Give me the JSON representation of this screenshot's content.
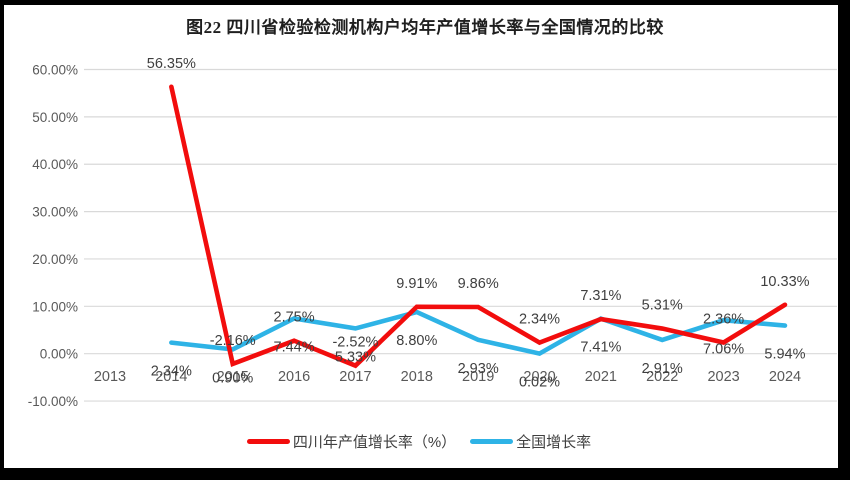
{
  "title": "图22  四川省检验检测机构户均年产值增长率与全国情况的比较",
  "legend": {
    "items": [
      {
        "label": "四川年产值增长率（%）",
        "color": "#f20d0d"
      },
      {
        "label": "全国增长率",
        "color": "#2eb3e6"
      }
    ]
  },
  "chart_data": {
    "type": "line",
    "title": "图22  四川省检验检测机构户均年产值增长率与全国情况的比较",
    "categories": [
      "2013",
      "2014",
      "2015",
      "2016",
      "2017",
      "2018",
      "2019",
      "2020",
      "2021",
      "2022",
      "2023",
      "2024"
    ],
    "series": [
      {
        "name": "四川年产值增长率（%）",
        "color": "#f20d0d",
        "label_position": "above",
        "values": [
          null,
          56.35,
          -2.16,
          2.75,
          -2.52,
          9.91,
          9.86,
          2.34,
          7.31,
          5.31,
          2.36,
          10.33
        ],
        "labels": [
          "",
          "56.35%",
          "-2.16%",
          "2.75%",
          "-2.52%",
          "9.91%",
          "9.86%",
          "2.34%",
          "7.31%",
          "5.31%",
          "2.36%",
          "10.33%"
        ]
      },
      {
        "name": "全国增长率",
        "color": "#2eb3e6",
        "label_position": "below",
        "values": [
          null,
          2.34,
          0.9,
          7.44,
          5.33,
          8.8,
          2.93,
          0.02,
          7.41,
          2.91,
          7.06,
          5.94
        ],
        "labels": [
          "",
          "2.34%",
          "0.90%",
          "7.44%",
          "5.33%",
          "8.80%",
          "2.93%",
          "0.02%",
          "7.41%",
          "2.91%",
          "7.06%",
          "5.94%"
        ]
      }
    ],
    "y_axis": {
      "min": -10,
      "max": 60,
      "ticks": [
        60,
        50,
        40,
        30,
        20,
        10,
        0,
        -10
      ],
      "tick_labels": [
        "60.00%",
        "50.00%",
        "40.00%",
        "30.00%",
        "20.00%",
        "10.00%",
        "0.00%",
        "-10.00%"
      ]
    },
    "grid": true,
    "legend_position": "bottom",
    "colors": {
      "gridline": "#d9d9d9",
      "axis_text": "#595959",
      "data_label_text": "#3f3f3f"
    }
  }
}
